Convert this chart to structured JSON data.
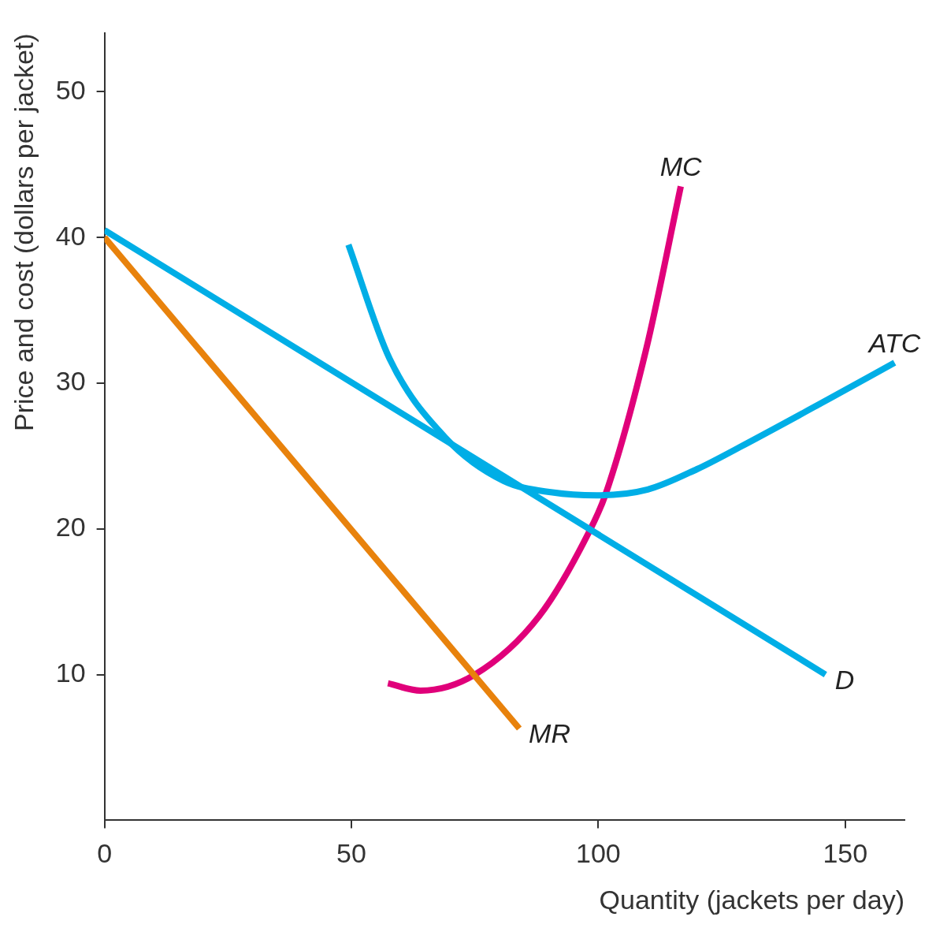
{
  "chart_data": {
    "type": "line",
    "xlabel": "Quantity (jackets per day)",
    "ylabel": "Price and cost (dollars per jacket)",
    "xlim": [
      0,
      162
    ],
    "ylim": [
      0,
      54
    ],
    "xticks": [
      0,
      50,
      100,
      150
    ],
    "yticks": [
      10,
      20,
      30,
      40,
      50
    ],
    "grid": false,
    "legend": false,
    "marker": "none",
    "line_style": "solid",
    "series": [
      {
        "name": "MR",
        "color": "#e8820c",
        "x": [
          0,
          84
        ],
        "values": [
          40,
          6.3
        ]
      },
      {
        "name": "D",
        "color": "#00aee6",
        "x": [
          0,
          146
        ],
        "values": [
          40.5,
          10
        ]
      },
      {
        "name": "ATC",
        "color": "#00aee6",
        "x": [
          49.4,
          57.7,
          69.2,
          80.8,
          90.7,
          99.7,
          110,
          120,
          128.6,
          145,
          160
        ],
        "values": [
          39.5,
          31.7,
          26.2,
          23.3,
          22.5,
          22.3,
          22.7,
          24.1,
          25.6,
          28.6,
          31.4
        ]
      },
      {
        "name": "MC",
        "color": "#e0007a",
        "x": [
          57.4,
          64,
          75,
          88,
          98,
          101.5,
          109.6,
          116.7
        ],
        "values": [
          9.4,
          8.9,
          10,
          14,
          19.7,
          22.4,
          32.2,
          43.5
        ]
      }
    ]
  }
}
